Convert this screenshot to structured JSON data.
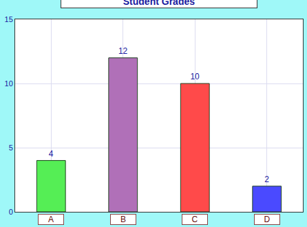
{
  "chart_data": {
    "type": "bar",
    "title": "Student Grades",
    "categories": [
      "A",
      "B",
      "C",
      "D"
    ],
    "values": [
      4,
      12,
      10,
      2
    ],
    "colors": [
      "#55ee55",
      "#b070b8",
      "#ff4a4a",
      "#4a4aff"
    ],
    "ylim": [
      0,
      15
    ],
    "yticks": [
      0,
      5,
      10,
      15
    ],
    "grid": true,
    "data_labels": true
  }
}
